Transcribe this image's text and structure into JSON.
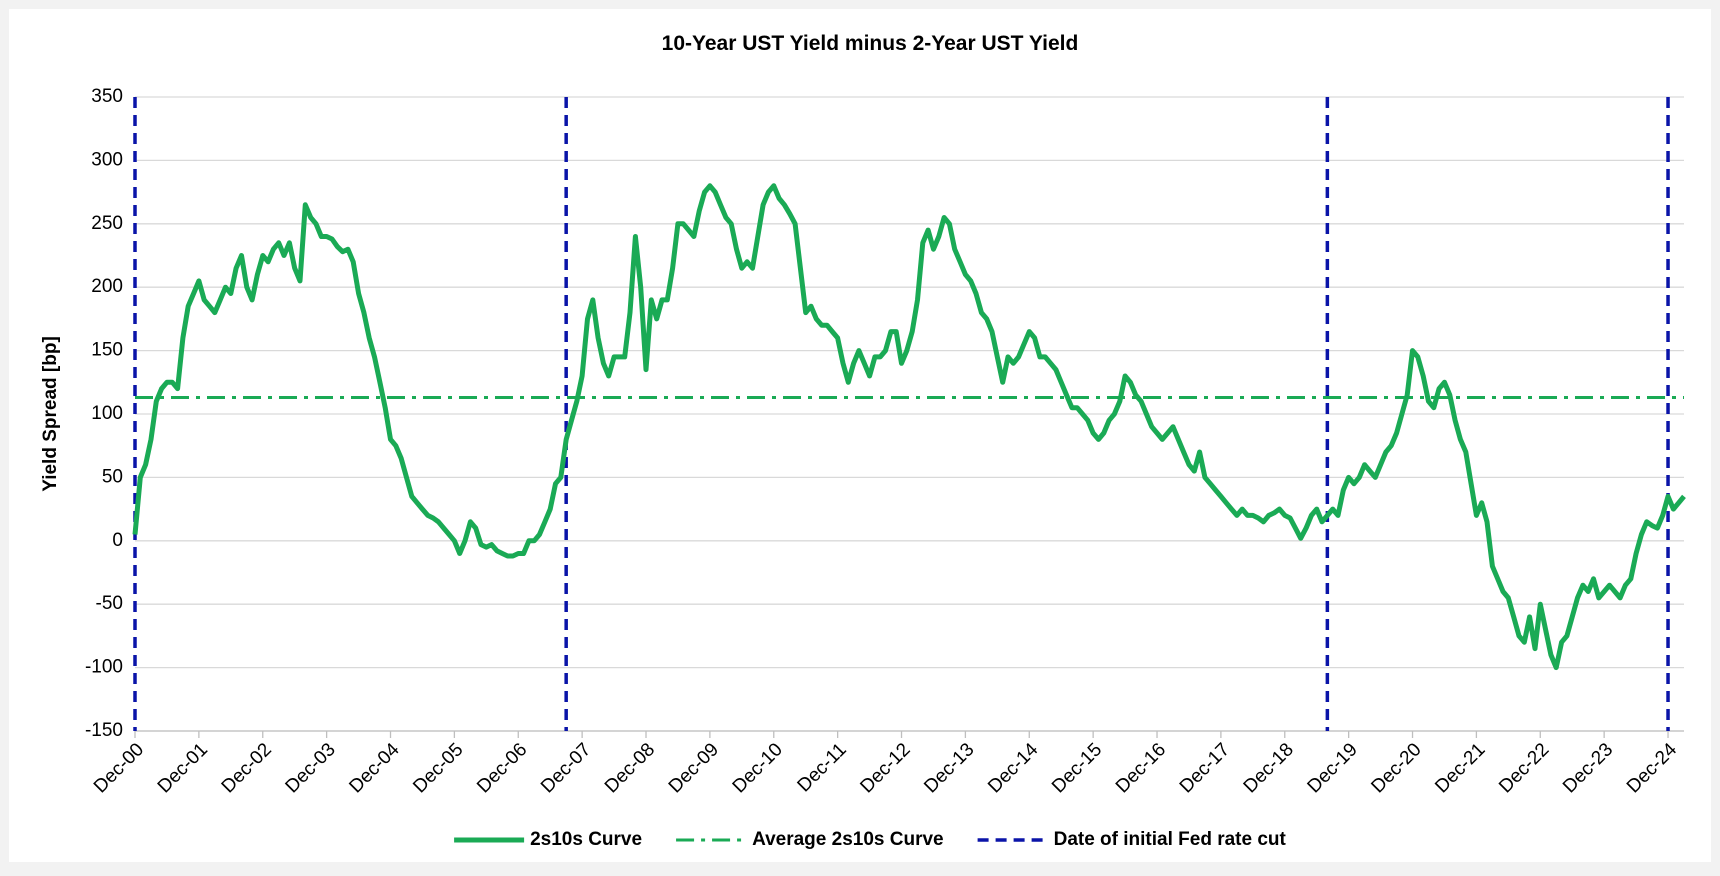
{
  "chart_data": {
    "type": "line",
    "title": "10-Year UST Yield minus 2-Year UST Yield",
    "y_label": "Yield Spread [bp]",
    "ylim": [
      -150,
      350
    ],
    "yticks": [
      -150,
      -100,
      -50,
      0,
      50,
      100,
      150,
      200,
      250,
      300,
      350
    ],
    "xlim": [
      "2000-12",
      "2025-03"
    ],
    "xticks": [
      {
        "value": "2000-12",
        "label": "Dec-00"
      },
      {
        "value": "2001-12",
        "label": "Dec-01"
      },
      {
        "value": "2002-12",
        "label": "Dec-02"
      },
      {
        "value": "2003-12",
        "label": "Dec-03"
      },
      {
        "value": "2004-12",
        "label": "Dec-04"
      },
      {
        "value": "2005-12",
        "label": "Dec-05"
      },
      {
        "value": "2006-12",
        "label": "Dec-06"
      },
      {
        "value": "2007-12",
        "label": "Dec-07"
      },
      {
        "value": "2008-12",
        "label": "Dec-08"
      },
      {
        "value": "2009-12",
        "label": "Dec-09"
      },
      {
        "value": "2010-12",
        "label": "Dec-10"
      },
      {
        "value": "2011-12",
        "label": "Dec-11"
      },
      {
        "value": "2012-12",
        "label": "Dec-12"
      },
      {
        "value": "2013-12",
        "label": "Dec-13"
      },
      {
        "value": "2014-12",
        "label": "Dec-14"
      },
      {
        "value": "2015-12",
        "label": "Dec-15"
      },
      {
        "value": "2016-12",
        "label": "Dec-16"
      },
      {
        "value": "2017-12",
        "label": "Dec-17"
      },
      {
        "value": "2018-12",
        "label": "Dec-18"
      },
      {
        "value": "2019-12",
        "label": "Dec-19"
      },
      {
        "value": "2020-12",
        "label": "Dec-20"
      },
      {
        "value": "2021-12",
        "label": "Dec-21"
      },
      {
        "value": "2022-12",
        "label": "Dec-22"
      },
      {
        "value": "2023-12",
        "label": "Dec-23"
      },
      {
        "value": "2024-12",
        "label": "Dec-24"
      }
    ],
    "grid": true,
    "legend": "bottom",
    "x": [
      "2000-12",
      "2001-01",
      "2001-02",
      "2001-03",
      "2001-04",
      "2001-05",
      "2001-06",
      "2001-07",
      "2001-08",
      "2001-09",
      "2001-10",
      "2001-11",
      "2001-12",
      "2002-01",
      "2002-02",
      "2002-03",
      "2002-04",
      "2002-05",
      "2002-06",
      "2002-07",
      "2002-08",
      "2002-09",
      "2002-10",
      "2002-11",
      "2002-12",
      "2003-01",
      "2003-02",
      "2003-03",
      "2003-04",
      "2003-05",
      "2003-06",
      "2003-07",
      "2003-08",
      "2003-09",
      "2003-10",
      "2003-11",
      "2003-12",
      "2004-01",
      "2004-02",
      "2004-03",
      "2004-04",
      "2004-05",
      "2004-06",
      "2004-07",
      "2004-08",
      "2004-09",
      "2004-10",
      "2004-11",
      "2004-12",
      "2005-01",
      "2005-02",
      "2005-03",
      "2005-04",
      "2005-05",
      "2005-06",
      "2005-07",
      "2005-08",
      "2005-09",
      "2005-10",
      "2005-11",
      "2005-12",
      "2006-01",
      "2006-02",
      "2006-03",
      "2006-04",
      "2006-05",
      "2006-06",
      "2006-07",
      "2006-08",
      "2006-09",
      "2006-10",
      "2006-11",
      "2006-12",
      "2007-01",
      "2007-02",
      "2007-03",
      "2007-04",
      "2007-05",
      "2007-06",
      "2007-07",
      "2007-08",
      "2007-09",
      "2007-10",
      "2007-11",
      "2007-12",
      "2008-01",
      "2008-02",
      "2008-03",
      "2008-04",
      "2008-05",
      "2008-06",
      "2008-07",
      "2008-08",
      "2008-09",
      "2008-10",
      "2008-11",
      "2008-12",
      "2009-01",
      "2009-02",
      "2009-03",
      "2009-04",
      "2009-05",
      "2009-06",
      "2009-07",
      "2009-08",
      "2009-09",
      "2009-10",
      "2009-11",
      "2009-12",
      "2010-01",
      "2010-02",
      "2010-03",
      "2010-04",
      "2010-05",
      "2010-06",
      "2010-07",
      "2010-08",
      "2010-09",
      "2010-10",
      "2010-11",
      "2010-12",
      "2011-01",
      "2011-02",
      "2011-03",
      "2011-04",
      "2011-05",
      "2011-06",
      "2011-07",
      "2011-08",
      "2011-09",
      "2011-10",
      "2011-11",
      "2011-12",
      "2012-01",
      "2012-02",
      "2012-03",
      "2012-04",
      "2012-05",
      "2012-06",
      "2012-07",
      "2012-08",
      "2012-09",
      "2012-10",
      "2012-11",
      "2012-12",
      "2013-01",
      "2013-02",
      "2013-03",
      "2013-04",
      "2013-05",
      "2013-06",
      "2013-07",
      "2013-08",
      "2013-09",
      "2013-10",
      "2013-11",
      "2013-12",
      "2014-01",
      "2014-02",
      "2014-03",
      "2014-04",
      "2014-05",
      "2014-06",
      "2014-07",
      "2014-08",
      "2014-09",
      "2014-10",
      "2014-11",
      "2014-12",
      "2015-01",
      "2015-02",
      "2015-03",
      "2015-04",
      "2015-05",
      "2015-06",
      "2015-07",
      "2015-08",
      "2015-09",
      "2015-10",
      "2015-11",
      "2015-12",
      "2016-01",
      "2016-02",
      "2016-03",
      "2016-04",
      "2016-05",
      "2016-06",
      "2016-07",
      "2016-08",
      "2016-09",
      "2016-10",
      "2016-11",
      "2016-12",
      "2017-01",
      "2017-02",
      "2017-03",
      "2017-04",
      "2017-05",
      "2017-06",
      "2017-07",
      "2017-08",
      "2017-09",
      "2017-10",
      "2017-11",
      "2017-12",
      "2018-01",
      "2018-02",
      "2018-03",
      "2018-04",
      "2018-05",
      "2018-06",
      "2018-07",
      "2018-08",
      "2018-09",
      "2018-10",
      "2018-11",
      "2018-12",
      "2019-01",
      "2019-02",
      "2019-03",
      "2019-04",
      "2019-05",
      "2019-06",
      "2019-07",
      "2019-08",
      "2019-09",
      "2019-10",
      "2019-11",
      "2019-12",
      "2020-01",
      "2020-02",
      "2020-03",
      "2020-04",
      "2020-05",
      "2020-06",
      "2020-07",
      "2020-08",
      "2020-09",
      "2020-10",
      "2020-11",
      "2020-12",
      "2021-01",
      "2021-02",
      "2021-03",
      "2021-04",
      "2021-05",
      "2021-06",
      "2021-07",
      "2021-08",
      "2021-09",
      "2021-10",
      "2021-11",
      "2021-12",
      "2022-01",
      "2022-02",
      "2022-03",
      "2022-04",
      "2022-05",
      "2022-06",
      "2022-07",
      "2022-08",
      "2022-09",
      "2022-10",
      "2022-11",
      "2022-12",
      "2023-01",
      "2023-02",
      "2023-03",
      "2023-04",
      "2023-05",
      "2023-06",
      "2023-07",
      "2023-08",
      "2023-09",
      "2023-10",
      "2023-11",
      "2023-12",
      "2024-01",
      "2024-02",
      "2024-03",
      "2024-04",
      "2024-05",
      "2024-06",
      "2024-07",
      "2024-08",
      "2024-09",
      "2024-10",
      "2024-11",
      "2024-12",
      "2025-01",
      "2025-02",
      "2025-03"
    ],
    "series": [
      {
        "name": "2s10s Curve",
        "color": "#1aaa55",
        "values": [
          5,
          50,
          60,
          80,
          110,
          120,
          125,
          125,
          120,
          160,
          185,
          195,
          205,
          190,
          185,
          180,
          190,
          200,
          195,
          215,
          225,
          200,
          190,
          210,
          225,
          220,
          230,
          235,
          225,
          235,
          215,
          205,
          265,
          255,
          250,
          240,
          240,
          238,
          232,
          228,
          230,
          220,
          195,
          180,
          160,
          145,
          125,
          105,
          80,
          75,
          65,
          50,
          35,
          30,
          25,
          20,
          18,
          15,
          10,
          5,
          0,
          -10,
          0,
          15,
          10,
          -3,
          -5,
          -3,
          -8,
          -10,
          -12,
          -12,
          -10,
          -10,
          0,
          0,
          5,
          15,
          25,
          45,
          50,
          80,
          95,
          110,
          130,
          175,
          190,
          160,
          140,
          130,
          145,
          145,
          145,
          180,
          240,
          200,
          135,
          190,
          175,
          190,
          190,
          215,
          250,
          250,
          245,
          240,
          260,
          275,
          280,
          275,
          265,
          255,
          250,
          230,
          215,
          220,
          215,
          240,
          265,
          275,
          280,
          270,
          265,
          258,
          250,
          215,
          180,
          185,
          175,
          170,
          170,
          165,
          160,
          140,
          125,
          140,
          150,
          140,
          130,
          145,
          145,
          150,
          165,
          165,
          140,
          150,
          165,
          190,
          235,
          245,
          230,
          240,
          255,
          250,
          230,
          220,
          210,
          205,
          195,
          180,
          175,
          165,
          145,
          125,
          145,
          140,
          145,
          155,
          165,
          160,
          145,
          145,
          140,
          135,
          125,
          115,
          105,
          105,
          100,
          95,
          85,
          80,
          85,
          95,
          100,
          110,
          130,
          125,
          115,
          110,
          100,
          90,
          85,
          80,
          85,
          90,
          80,
          70,
          60,
          55,
          70,
          50,
          45,
          40,
          35,
          30,
          25,
          20,
          25,
          20,
          20,
          18,
          15,
          20,
          22,
          25,
          20,
          18,
          10,
          2,
          10,
          20,
          25,
          15,
          20,
          25,
          20,
          40,
          50,
          45,
          50,
          60,
          55,
          50,
          60,
          70,
          75,
          85,
          100,
          115,
          150,
          145,
          130,
          110,
          105,
          120,
          125,
          115,
          95,
          80,
          70,
          45,
          20,
          30,
          15,
          -20,
          -30,
          -40,
          -45,
          -60,
          -75,
          -80,
          -60,
          -85,
          -50,
          -70,
          -90,
          -100,
          -80,
          -75,
          -60,
          -45,
          -35,
          -40,
          -30,
          -45,
          -40,
          -35,
          -40,
          -45,
          -35,
          -30,
          -10,
          5,
          15,
          12,
          10,
          20,
          35,
          25,
          30,
          35
        ]
      }
    ],
    "average": {
      "name": "Average 2s10s Curve",
      "color": "#1aaa55",
      "value": 113
    },
    "fed_cuts": {
      "name": "Date of initial Fed rate cut",
      "color": "#0a14a8",
      "dates": [
        "2000-12",
        "2007-09",
        "2019-08",
        "2024-12"
      ]
    }
  }
}
